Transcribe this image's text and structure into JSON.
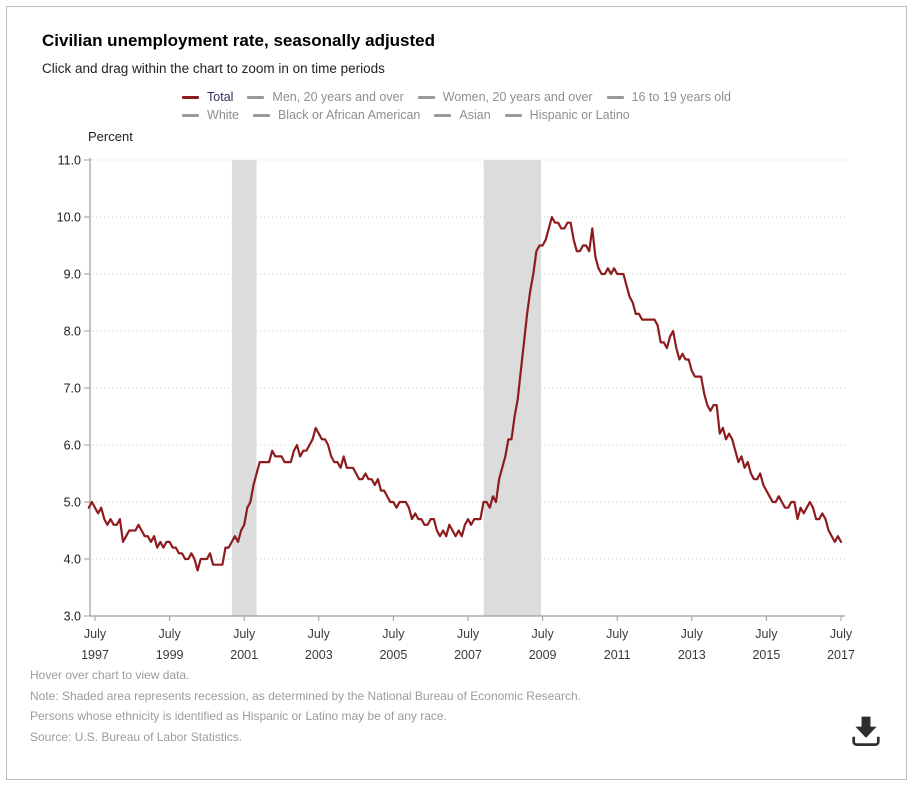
{
  "header": {
    "title": "Civilian unemployment rate, seasonally adjusted",
    "subtitle": "Click and drag within the chart to zoom in on time periods"
  },
  "legend": {
    "rows": [
      [
        {
          "label": "Total",
          "selected": true,
          "dash_color": "#8e1c1f",
          "text_color": "#2d2d5e"
        },
        {
          "label": "Men, 20 years and over",
          "selected": false,
          "dash_color": "#9a9a9a",
          "text_color": "#8f8f8f"
        },
        {
          "label": "Women, 20 years and over",
          "selected": false,
          "dash_color": "#9a9a9a",
          "text_color": "#8f8f8f"
        },
        {
          "label": "16 to 19 years old",
          "selected": false,
          "dash_color": "#9a9a9a",
          "text_color": "#8f8f8f"
        }
      ],
      [
        {
          "label": "White",
          "selected": false,
          "dash_color": "#9a9a9a",
          "text_color": "#8f8f8f"
        },
        {
          "label": "Black or African American",
          "selected": false,
          "dash_color": "#9a9a9a",
          "text_color": "#8f8f8f"
        },
        {
          "label": "Asian",
          "selected": false,
          "dash_color": "#9a9a9a",
          "text_color": "#8f8f8f"
        },
        {
          "label": "Hispanic or Latino",
          "selected": false,
          "dash_color": "#9a9a9a",
          "text_color": "#8f8f8f"
        }
      ]
    ]
  },
  "chart_data": {
    "type": "line",
    "title": "Civilian unemployment rate, seasonally adjusted",
    "ylabel": "Percent",
    "ylim": [
      3.0,
      11.0
    ],
    "grid": "dotted-horizontal",
    "legend_position": "top-center",
    "y_ticks": [
      {
        "value": 11,
        "label": "11.0"
      },
      {
        "value": 10,
        "label": "10.0"
      },
      {
        "value": 9,
        "label": "9.0"
      },
      {
        "value": 8,
        "label": "8.0"
      },
      {
        "value": 7,
        "label": "7.0"
      },
      {
        "value": 6,
        "label": "6.0"
      },
      {
        "value": 5,
        "label": "5.0"
      },
      {
        "value": 4,
        "label": "4.0"
      },
      {
        "value": 3,
        "label": "3.0"
      }
    ],
    "x_ticks": [
      {
        "year": 1997.5,
        "line1": "July",
        "line2": "1997"
      },
      {
        "year": 1999.5,
        "line1": "July",
        "line2": "1999"
      },
      {
        "year": 2001.5,
        "line1": "July",
        "line2": "2001"
      },
      {
        "year": 2003.5,
        "line1": "July",
        "line2": "2003"
      },
      {
        "year": 2005.5,
        "line1": "July",
        "line2": "2005"
      },
      {
        "year": 2007.5,
        "line1": "July",
        "line2": "2007"
      },
      {
        "year": 2009.5,
        "line1": "July",
        "line2": "2009"
      },
      {
        "year": 2011.5,
        "line1": "July",
        "line2": "2011"
      },
      {
        "year": 2013.5,
        "line1": "July",
        "line2": "2013"
      },
      {
        "year": 2015.5,
        "line1": "July",
        "line2": "2015"
      },
      {
        "year": 2017.5,
        "line1": "July",
        "line2": "2017"
      }
    ],
    "recessions": [
      {
        "start": 2001.17,
        "end": 2001.83
      },
      {
        "start": 2007.92,
        "end": 2009.46
      }
    ],
    "series": [
      {
        "name": "Total",
        "color": "#8e1c1f",
        "frequency": "monthly",
        "start_year": 1997,
        "start_month": 5,
        "values": [
          4.9,
          5.0,
          4.9,
          4.8,
          4.9,
          4.7,
          4.6,
          4.7,
          4.6,
          4.6,
          4.7,
          4.3,
          4.4,
          4.5,
          4.5,
          4.5,
          4.6,
          4.5,
          4.4,
          4.4,
          4.3,
          4.4,
          4.2,
          4.3,
          4.2,
          4.3,
          4.3,
          4.2,
          4.2,
          4.1,
          4.1,
          4.0,
          4.0,
          4.1,
          4.0,
          3.8,
          4.0,
          4.0,
          4.0,
          4.1,
          3.9,
          3.9,
          3.9,
          3.9,
          4.2,
          4.2,
          4.3,
          4.4,
          4.3,
          4.5,
          4.6,
          4.9,
          5.0,
          5.3,
          5.5,
          5.7,
          5.7,
          5.7,
          5.7,
          5.9,
          5.8,
          5.8,
          5.8,
          5.7,
          5.7,
          5.7,
          5.9,
          6.0,
          5.8,
          5.9,
          5.9,
          6.0,
          6.1,
          6.3,
          6.2,
          6.1,
          6.1,
          6.0,
          5.8,
          5.7,
          5.7,
          5.6,
          5.8,
          5.6,
          5.6,
          5.6,
          5.5,
          5.4,
          5.4,
          5.5,
          5.4,
          5.4,
          5.3,
          5.4,
          5.2,
          5.2,
          5.1,
          5.0,
          5.0,
          4.9,
          5.0,
          5.0,
          5.0,
          4.9,
          4.7,
          4.8,
          4.7,
          4.7,
          4.6,
          4.6,
          4.7,
          4.7,
          4.5,
          4.4,
          4.5,
          4.4,
          4.6,
          4.5,
          4.4,
          4.5,
          4.4,
          4.6,
          4.7,
          4.6,
          4.7,
          4.7,
          4.7,
          5.0,
          5.0,
          4.9,
          5.1,
          5.0,
          5.4,
          5.6,
          5.8,
          6.1,
          6.1,
          6.5,
          6.8,
          7.3,
          7.8,
          8.3,
          8.7,
          9.0,
          9.4,
          9.5,
          9.5,
          9.6,
          9.8,
          10.0,
          9.9,
          9.9,
          9.8,
          9.8,
          9.9,
          9.9,
          9.6,
          9.4,
          9.4,
          9.5,
          9.5,
          9.4,
          9.8,
          9.3,
          9.1,
          9.0,
          9.0,
          9.1,
          9.0,
          9.1,
          9.0,
          9.0,
          9.0,
          8.8,
          8.6,
          8.5,
          8.3,
          8.3,
          8.2,
          8.2,
          8.2,
          8.2,
          8.2,
          8.1,
          7.8,
          7.8,
          7.7,
          7.9,
          8.0,
          7.7,
          7.5,
          7.6,
          7.5,
          7.5,
          7.3,
          7.2,
          7.2,
          7.2,
          6.9,
          6.7,
          6.6,
          6.7,
          6.7,
          6.2,
          6.3,
          6.1,
          6.2,
          6.1,
          5.9,
          5.7,
          5.8,
          5.6,
          5.7,
          5.5,
          5.4,
          5.4,
          5.5,
          5.3,
          5.2,
          5.1,
          5.0,
          5.0,
          5.1,
          5.0,
          4.9,
          4.9,
          5.0,
          5.0,
          4.7,
          4.9,
          4.8,
          4.9,
          5.0,
          4.9,
          4.7,
          4.7,
          4.8,
          4.7,
          4.5,
          4.4,
          4.3,
          4.4,
          4.3
        ]
      }
    ],
    "inactive_series": [
      "Men, 20 years and over",
      "Women, 20 years and over",
      "16 to 19 years old",
      "White",
      "Black or African American",
      "Asian",
      "Hispanic or Latino"
    ],
    "colors": {
      "recession_band": "#dcdcdc",
      "gridline": "#c9c9c9",
      "axis": "#9b9b9b",
      "y_tick_text": "#1c1c1c",
      "x_tick_text": "#3a3a3a"
    }
  },
  "footnotes": {
    "line1": "Hover over chart to view data.",
    "line2": "Note: Shaded area represents recession, as determined by the National Bureau of Economic Research.",
    "line3": "Persons whose ethnicity is identified as Hispanic or Latino may be of any race.",
    "line4": "Source: U.S. Bureau of Labor Statistics."
  },
  "download": {
    "tooltip": "Download",
    "icon_color": "#2e2e2e"
  }
}
